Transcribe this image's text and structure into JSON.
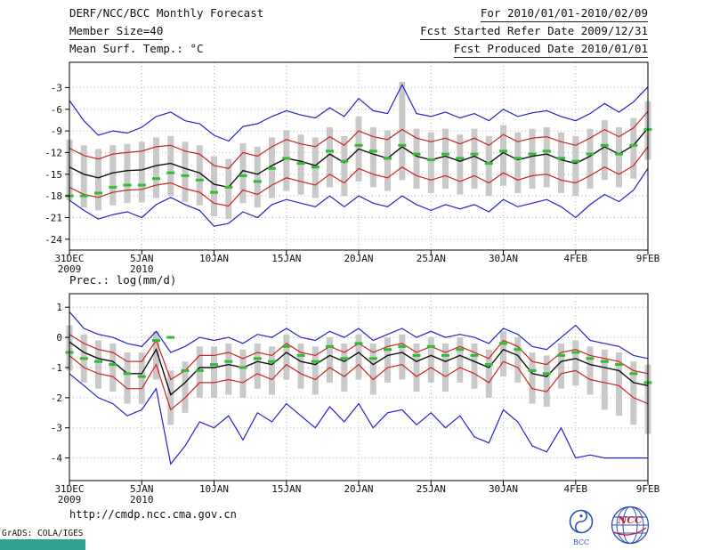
{
  "header": {
    "title": "DERF/NCC/BCC Monthly Forecast",
    "member_size": "Member Size=40",
    "for_range": "For 2010/01/01-2010/02/09",
    "refer_date": "Fcst Started Refer Date 2009/12/31",
    "produced_date": "Fcst Produced Date 2010/01/01"
  },
  "footer": {
    "url": "http://cmdp.ncc.cma.gov.cn",
    "grads_credit": "GrADS: COLA/IGES",
    "logo1_label": "BCC",
    "logo2_label": "NCC"
  },
  "colors": {
    "line_blue": "#2222cc",
    "line_red": "#cc2222",
    "line_black": "#111111",
    "obs_green": "#33bb33",
    "bar_gray": "#c9c9c9",
    "grid_gray": "#b3b3b3",
    "frame": "#000000",
    "teal_bar": "#31a08c",
    "logo_blue": "#2b4fb8",
    "logo_red": "#cc2222"
  },
  "chart_data": [
    {
      "type": "line",
      "title": "Mean Surf. Temp.: °C",
      "n_points": 41,
      "ylim": [
        -25.5,
        0.5
      ],
      "yticks": [
        -3,
        -6,
        -9,
        -12,
        -15,
        -18,
        -21,
        -24
      ],
      "x_tick_positions": [
        0,
        5,
        10,
        15,
        20,
        25,
        30,
        35,
        40
      ],
      "x_tick_labels": [
        [
          "31DEC",
          "2009"
        ],
        [
          "5JAN",
          "2010"
        ],
        [
          "10JAN",
          ""
        ],
        [
          "15JAN",
          ""
        ],
        [
          "20JAN",
          ""
        ],
        [
          "25JAN",
          ""
        ],
        [
          "30JAN",
          ""
        ],
        [
          "4FEB",
          ""
        ],
        [
          "9FEB",
          ""
        ]
      ],
      "series": [
        {
          "name": "ensemble-max",
          "color": "line_blue",
          "values": [
            -4.8,
            -7.6,
            -9.6,
            -9.0,
            -9.3,
            -8.5,
            -7.0,
            -6.4,
            -7.6,
            -8.0,
            -9.6,
            -10.4,
            -8.4,
            -8.0,
            -7.0,
            -6.2,
            -6.8,
            -7.2,
            -5.8,
            -7.0,
            -4.5,
            -6.2,
            -6.6,
            -2.6,
            -6.6,
            -7.0,
            -6.4,
            -7.2,
            -6.6,
            -7.6,
            -6.0,
            -7.0,
            -6.5,
            -6.2,
            -7.0,
            -7.6,
            -6.6,
            -5.2,
            -6.4,
            -5.0,
            -2.9
          ]
        },
        {
          "name": "upper-quartile",
          "color": "line_red",
          "values": [
            -11.4,
            -12.4,
            -12.9,
            -12.2,
            -12.0,
            -11.8,
            -11.2,
            -11.0,
            -11.8,
            -12.2,
            -13.8,
            -14.2,
            -12.0,
            -12.5,
            -11.2,
            -10.2,
            -10.8,
            -11.2,
            -9.8,
            -11.0,
            -9.0,
            -9.8,
            -10.2,
            -8.8,
            -10.0,
            -10.5,
            -10.0,
            -10.8,
            -10.0,
            -11.0,
            -9.5,
            -10.5,
            -10.0,
            -9.8,
            -10.5,
            -11.0,
            -10.0,
            -8.8,
            -9.8,
            -8.6,
            -6.3
          ]
        },
        {
          "name": "ensemble-mean",
          "color": "line_black",
          "values": [
            -14.0,
            -15.0,
            -15.5,
            -14.8,
            -14.5,
            -14.4,
            -13.8,
            -13.5,
            -14.2,
            -14.8,
            -16.4,
            -16.8,
            -14.5,
            -15.0,
            -13.8,
            -12.8,
            -13.2,
            -13.8,
            -12.2,
            -13.4,
            -11.5,
            -12.2,
            -12.8,
            -11.2,
            -12.5,
            -13.0,
            -12.5,
            -13.2,
            -12.5,
            -13.5,
            -12.0,
            -13.0,
            -12.5,
            -12.2,
            -13.0,
            -13.5,
            -12.5,
            -11.2,
            -12.2,
            -11.0,
            -8.6
          ]
        },
        {
          "name": "lower-quartile",
          "color": "line_red",
          "values": [
            -16.8,
            -17.8,
            -18.2,
            -17.5,
            -17.2,
            -17.1,
            -16.5,
            -16.2,
            -17.0,
            -17.5,
            -19.0,
            -19.4,
            -17.2,
            -17.8,
            -16.5,
            -15.5,
            -16.0,
            -16.5,
            -15.0,
            -16.2,
            -14.2,
            -15.0,
            -15.5,
            -14.0,
            -15.2,
            -15.8,
            -15.2,
            -16.0,
            -15.2,
            -16.2,
            -14.8,
            -15.8,
            -15.2,
            -15.0,
            -15.8,
            -16.2,
            -15.2,
            -14.0,
            -15.0,
            -13.8,
            -11.2
          ]
        },
        {
          "name": "ensemble-min",
          "color": "line_blue",
          "values": [
            -18.6,
            -20.0,
            -21.2,
            -20.6,
            -20.2,
            -21.0,
            -19.2,
            -18.2,
            -19.2,
            -20.0,
            -22.2,
            -21.8,
            -20.2,
            -21.0,
            -19.2,
            -18.5,
            -19.0,
            -19.5,
            -18.0,
            -19.5,
            -18.0,
            -19.0,
            -19.5,
            -18.0,
            -19.2,
            -20.0,
            -19.2,
            -19.8,
            -19.2,
            -20.2,
            -18.5,
            -19.5,
            -19.0,
            -18.5,
            -19.5,
            -21.0,
            -19.2,
            -17.8,
            -18.8,
            -17.2,
            -14.2
          ]
        }
      ],
      "bars": {
        "name": "ensemble-spread",
        "color": "bar_gray",
        "high": [
          -10.2,
          -11.0,
          -11.5,
          -11.0,
          -10.8,
          -10.5,
          -9.9,
          -9.7,
          -10.5,
          -11.0,
          -12.5,
          -12.9,
          -10.7,
          -11.2,
          -9.9,
          -8.9,
          -9.5,
          -9.9,
          -8.5,
          -9.7,
          -7.0,
          -8.5,
          -8.9,
          -2.2,
          -8.7,
          -9.2,
          -8.7,
          -9.5,
          -8.7,
          -9.7,
          -8.2,
          -9.2,
          -8.7,
          -8.5,
          -9.2,
          -9.7,
          -8.7,
          -7.5,
          -8.5,
          -7.2,
          -4.9
        ],
        "low": [
          -18.6,
          -19.6,
          -20.0,
          -19.3,
          -19.0,
          -18.9,
          -18.3,
          -18.0,
          -18.8,
          -19.3,
          -20.8,
          -21.2,
          -19.0,
          -19.6,
          -18.3,
          -17.3,
          -17.8,
          -18.3,
          -16.8,
          -18.0,
          -16.0,
          -16.8,
          -17.3,
          -15.8,
          -17.0,
          -17.6,
          -17.0,
          -17.8,
          -17.0,
          -18.0,
          -16.6,
          -17.6,
          -17.0,
          -16.8,
          -17.6,
          -18.0,
          -17.0,
          -15.8,
          -16.8,
          -15.6,
          -13.0
        ]
      },
      "dashes": {
        "name": "observation",
        "color": "obs_green",
        "values": [
          -18.0,
          -18.0,
          -17.6,
          -16.8,
          -16.5,
          -16.5,
          -15.6,
          -14.8,
          -15.2,
          -15.8,
          -17.5,
          -16.8,
          -15.2,
          -16.0,
          -14.2,
          -12.8,
          -13.5,
          -14.0,
          -11.8,
          -13.2,
          -11.0,
          -11.8,
          -12.8,
          -11.0,
          -12.2,
          -13.0,
          -12.2,
          -12.8,
          -12.2,
          -13.5,
          -11.8,
          -12.8,
          -12.2,
          -11.8,
          -12.8,
          -13.2,
          -12.2,
          -11.0,
          -12.2,
          -11.0,
          -8.8
        ]
      }
    },
    {
      "type": "line",
      "title": "Prec.: log(mm/d)",
      "n_points": 41,
      "ylim": [
        -4.75,
        1.45
      ],
      "yticks": [
        1,
        0,
        -1,
        -2,
        -3,
        -4
      ],
      "x_tick_positions": [
        0,
        5,
        10,
        15,
        20,
        25,
        30,
        35,
        40
      ],
      "x_tick_labels": [
        [
          "31DEC",
          "2009"
        ],
        [
          "5JAN",
          "2010"
        ],
        [
          "10JAN",
          ""
        ],
        [
          "15JAN",
          ""
        ],
        [
          "20JAN",
          ""
        ],
        [
          "25JAN",
          ""
        ],
        [
          "30JAN",
          ""
        ],
        [
          "4FEB",
          ""
        ],
        [
          "9FEB",
          ""
        ]
      ],
      "series": [
        {
          "name": "ensemble-max",
          "color": "line_blue",
          "values": [
            0.85,
            0.3,
            0.1,
            0.0,
            -0.2,
            -0.3,
            0.2,
            -0.5,
            -0.3,
            0.0,
            -0.1,
            0.0,
            -0.2,
            0.1,
            0.0,
            0.3,
            0.0,
            -0.1,
            0.2,
            0.0,
            0.3,
            -0.1,
            0.1,
            0.3,
            0.0,
            0.2,
            0.0,
            0.1,
            0.0,
            -0.2,
            0.3,
            0.1,
            -0.3,
            -0.4,
            0.0,
            0.4,
            -0.1,
            -0.2,
            -0.3,
            -0.6,
            -0.7
          ]
        },
        {
          "name": "upper-quartile",
          "color": "line_red",
          "values": [
            0.1,
            -0.2,
            -0.4,
            -0.5,
            -0.8,
            -0.8,
            -0.1,
            -1.4,
            -1.1,
            -0.6,
            -0.6,
            -0.5,
            -0.7,
            -0.5,
            -0.6,
            -0.2,
            -0.5,
            -0.6,
            -0.3,
            -0.5,
            -0.2,
            -0.5,
            -0.3,
            -0.2,
            -0.5,
            -0.3,
            -0.5,
            -0.3,
            -0.5,
            -0.7,
            -0.1,
            -0.3,
            -0.8,
            -0.9,
            -0.5,
            -0.4,
            -0.6,
            -0.7,
            -0.8,
            -1.1,
            -1.2
          ]
        },
        {
          "name": "ensemble-mean",
          "color": "line_black",
          "values": [
            -0.15,
            -0.5,
            -0.7,
            -0.8,
            -1.2,
            -1.2,
            -0.4,
            -1.9,
            -1.5,
            -1.0,
            -1.0,
            -0.9,
            -1.0,
            -0.8,
            -0.9,
            -0.5,
            -0.8,
            -0.9,
            -0.6,
            -0.8,
            -0.5,
            -0.9,
            -0.6,
            -0.5,
            -0.8,
            -0.6,
            -0.8,
            -0.6,
            -0.8,
            -1.0,
            -0.4,
            -0.6,
            -1.2,
            -1.3,
            -0.8,
            -0.7,
            -0.9,
            -1.0,
            -1.1,
            -1.5,
            -1.6
          ]
        },
        {
          "name": "lower-quartile",
          "color": "line_red",
          "values": [
            -0.6,
            -1.0,
            -1.2,
            -1.3,
            -1.7,
            -1.7,
            -0.9,
            -2.4,
            -2.0,
            -1.5,
            -1.5,
            -1.4,
            -1.5,
            -1.2,
            -1.4,
            -0.9,
            -1.2,
            -1.4,
            -1.0,
            -1.3,
            -0.9,
            -1.4,
            -1.0,
            -0.9,
            -1.3,
            -1.0,
            -1.3,
            -1.0,
            -1.2,
            -1.5,
            -0.8,
            -1.0,
            -1.7,
            -1.8,
            -1.2,
            -1.1,
            -1.4,
            -1.5,
            -1.6,
            -2.0,
            -2.2
          ]
        },
        {
          "name": "ensemble-min",
          "color": "line_blue",
          "values": [
            -1.2,
            -1.6,
            -2.0,
            -2.2,
            -2.6,
            -2.4,
            -1.7,
            -4.2,
            -3.6,
            -2.8,
            -3.0,
            -2.6,
            -3.4,
            -2.5,
            -2.8,
            -2.2,
            -2.6,
            -3.0,
            -2.3,
            -2.8,
            -2.2,
            -3.0,
            -2.5,
            -2.4,
            -2.9,
            -2.5,
            -3.0,
            -2.6,
            -3.3,
            -3.5,
            -2.4,
            -2.8,
            -3.6,
            -3.8,
            -3.0,
            -4.0,
            -3.9,
            -4.0,
            -4.0,
            -4.0,
            -4.0
          ]
        }
      ],
      "bars": {
        "name": "ensemble-spread",
        "color": "bar_gray",
        "high": [
          0.4,
          0.1,
          -0.1,
          -0.2,
          -0.5,
          -0.5,
          0.2,
          -1.1,
          -0.8,
          -0.3,
          -0.3,
          -0.2,
          -0.4,
          -0.2,
          -0.3,
          0.1,
          -0.2,
          -0.3,
          0.0,
          -0.2,
          0.1,
          -0.2,
          0.0,
          0.1,
          -0.2,
          0.0,
          -0.2,
          0.0,
          -0.2,
          -0.4,
          0.2,
          0.0,
          -0.5,
          -0.6,
          -0.2,
          -0.1,
          -0.3,
          -0.4,
          -0.5,
          -0.8,
          -0.9
        ],
        "low": [
          -1.1,
          -1.5,
          -1.7,
          -1.8,
          -2.2,
          -2.2,
          -1.4,
          -2.9,
          -2.5,
          -2.0,
          -2.0,
          -1.9,
          -2.0,
          -1.7,
          -1.9,
          -1.4,
          -1.7,
          -1.9,
          -1.5,
          -1.8,
          -1.4,
          -1.9,
          -1.5,
          -1.4,
          -1.8,
          -1.5,
          -1.8,
          -1.5,
          -1.7,
          -2.0,
          -1.3,
          -1.5,
          -2.2,
          -2.3,
          -1.7,
          -1.6,
          -1.9,
          -2.4,
          -2.6,
          -2.9,
          -3.2
        ]
      },
      "dashes": {
        "name": "observation",
        "color": "obs_green",
        "values": [
          -0.5,
          -0.7,
          -0.8,
          -0.9,
          -1.2,
          -1.3,
          -0.1,
          0.0,
          -1.1,
          -1.1,
          -0.9,
          -0.8,
          -1.0,
          -0.7,
          -0.8,
          -0.3,
          -0.6,
          -0.8,
          -0.3,
          -0.7,
          -0.2,
          -0.7,
          -0.4,
          -0.3,
          -0.6,
          -0.3,
          -0.6,
          -0.4,
          -0.6,
          -0.9,
          -0.2,
          -0.4,
          -1.1,
          -1.2,
          -0.6,
          -0.5,
          -0.7,
          -0.8,
          -0.9,
          -1.2,
          -1.5
        ]
      }
    }
  ]
}
